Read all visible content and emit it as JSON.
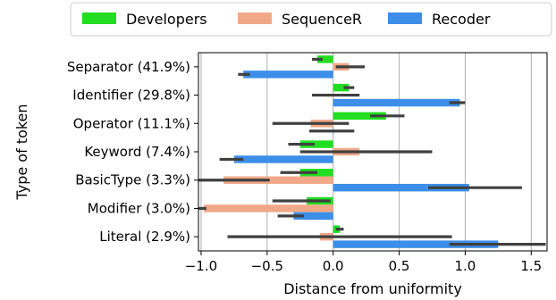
{
  "chart_data": {
    "type": "bar",
    "orientation": "horizontal",
    "title": "",
    "xlabel": "Distance from uniformity",
    "ylabel": "Type of token",
    "xlim": [
      -1.02,
      1.62
    ],
    "xticks": [
      -1.0,
      -0.5,
      0.0,
      0.5,
      1.0,
      1.5
    ],
    "xtick_labels": [
      "−1.0",
      "−0.5",
      "0.0",
      "0.5",
      "1.0",
      "1.5"
    ],
    "grid": "vertical",
    "legend_position": "top",
    "categories": [
      "Separator (41.9%)",
      "Identifier (29.8%)",
      "Operator (11.1%)",
      "Keyword (7.4%)",
      "BasicType (3.3%)",
      "Modifier (3.0%)",
      "Literal (2.9%)"
    ],
    "series": [
      {
        "name": "Developers",
        "color": "#22dd22",
        "values": [
          -0.12,
          0.12,
          0.4,
          -0.25,
          -0.25,
          -0.2,
          0.05
        ],
        "error": [
          [
            -0.16,
            -0.08
          ],
          [
            0.08,
            0.16
          ],
          [
            0.28,
            0.54
          ],
          [
            -0.34,
            -0.14
          ],
          [
            -0.4,
            -0.12
          ],
          [
            -0.46,
            -0.02
          ],
          [
            0.02,
            0.08
          ]
        ]
      },
      {
        "name": "SequenceR",
        "color": "#f0a888",
        "values": [
          0.12,
          0.0,
          -0.17,
          0.2,
          -0.83,
          -0.98,
          -0.1
        ],
        "error": [
          [
            0.02,
            0.24
          ],
          [
            -0.16,
            0.2
          ],
          [
            -0.46,
            0.12
          ],
          [
            -0.25,
            0.75
          ],
          [
            -1.02,
            -0.48
          ],
          [
            -1.02,
            -0.96
          ],
          [
            -0.8,
            0.9
          ]
        ]
      },
      {
        "name": "Recoder",
        "color": "#3d8ee8",
        "values": [
          -0.68,
          0.96,
          0.0,
          -0.75,
          1.03,
          -0.3,
          1.25
        ],
        "error": [
          [
            -0.72,
            -0.63
          ],
          [
            0.88,
            1.0
          ],
          [
            -0.18,
            0.16
          ],
          [
            -0.86,
            -0.68
          ],
          [
            0.72,
            1.43
          ],
          [
            -0.42,
            -0.22
          ],
          [
            0.88,
            1.61
          ]
        ]
      }
    ]
  }
}
